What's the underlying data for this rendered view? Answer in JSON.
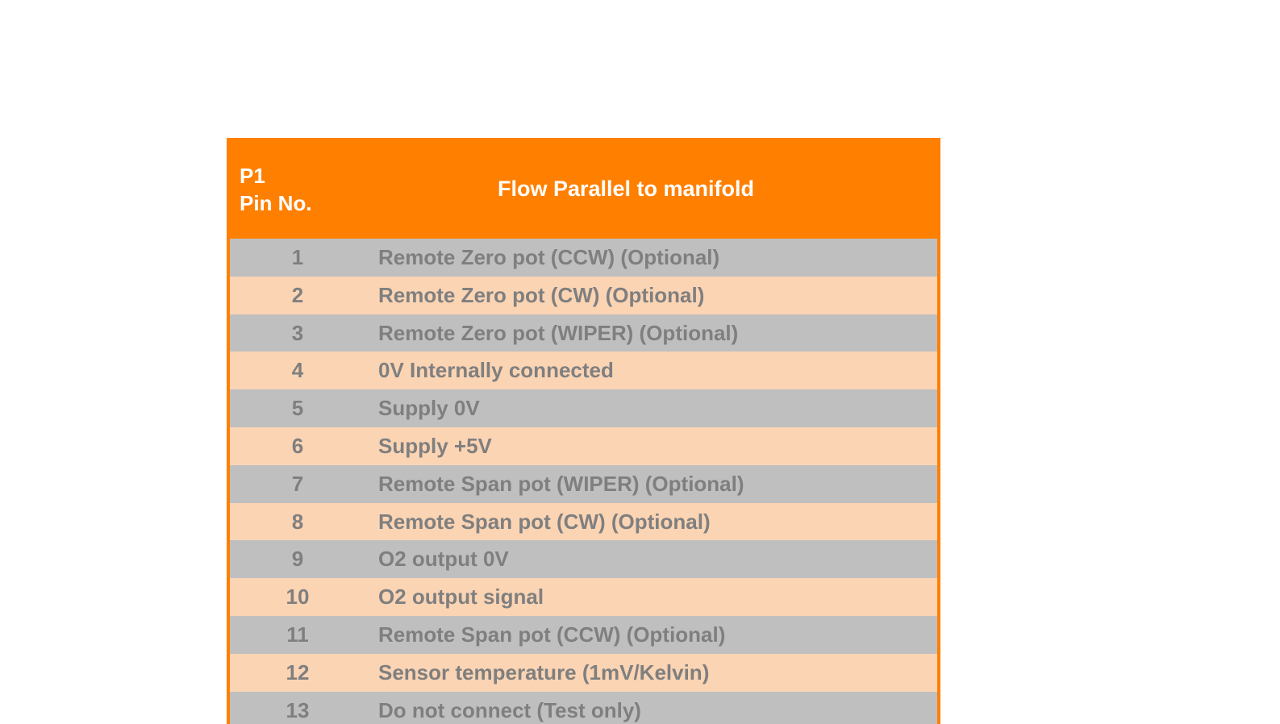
{
  "table": {
    "header": {
      "pin": [
        "P1",
        "Pin No."
      ],
      "description": "Flow Parallel to manifold"
    },
    "rows": [
      [
        "1",
        "Remote Zero pot (CCW) (Optional)"
      ],
      [
        "2",
        "Remote Zero pot (CW) (Optional)"
      ],
      [
        "3",
        "Remote Zero pot (WIPER) (Optional)"
      ],
      [
        "4",
        "0V Internally connected"
      ],
      [
        "5",
        "Supply 0V"
      ],
      [
        "6",
        "Supply +5V"
      ],
      [
        "7",
        "Remote Span pot (WIPER) (Optional)"
      ],
      [
        "8",
        "Remote Span pot (CW) (Optional)"
      ],
      [
        "9",
        "O2 output 0V"
      ],
      [
        "10",
        "O2 output signal"
      ],
      [
        "11",
        "Remote Span pot (CCW) (Optional)"
      ],
      [
        "12",
        "Sensor temperature (1mV/Kelvin)"
      ],
      [
        "13",
        "Do not connect (Test only)"
      ]
    ]
  }
}
